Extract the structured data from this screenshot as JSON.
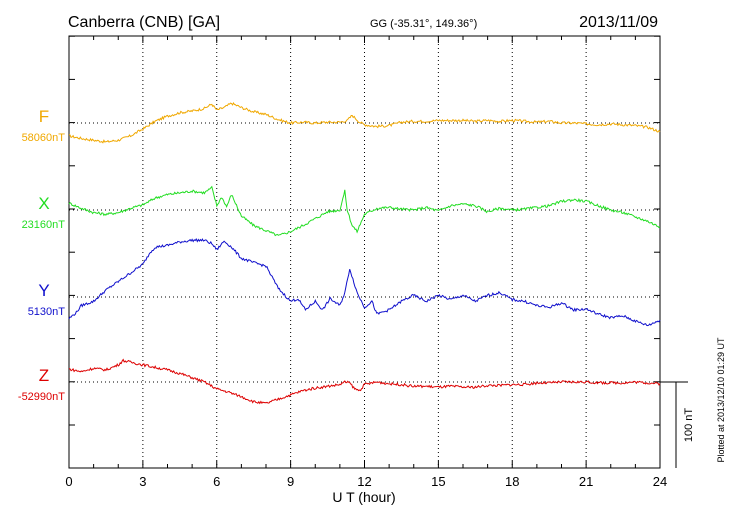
{
  "header": {
    "station": "Canberra (CNB)  [GA]",
    "coords": "GG (-35.31°, 149.36°)",
    "date": "2013/11/09"
  },
  "footer": {
    "plotted": "Plotted at 2013/12/10 01:29 UT",
    "scale_label": "100 nT"
  },
  "chart_data": {
    "type": "line",
    "xlabel": "U T (hour)",
    "xlim": [
      0,
      24
    ],
    "xticks": [
      "0",
      "3",
      "6",
      "9",
      "12",
      "15",
      "18",
      "21",
      "24"
    ],
    "scale_nT": 100,
    "series": [
      {
        "name": "F",
        "base_label": "58060nT",
        "base_nT": 58060,
        "color": "#f0a800",
        "x": [
          0,
          0.5,
          1,
          1.5,
          2,
          2.5,
          3,
          3.5,
          4,
          4.5,
          5,
          5.5,
          5.8,
          6,
          6.3,
          6.6,
          7,
          7.5,
          8,
          8.5,
          9,
          9.5,
          10,
          10.5,
          11,
          11.3,
          11.5,
          11.8,
          12,
          12.5,
          13,
          13.5,
          14,
          14.5,
          15,
          15.5,
          16,
          16.5,
          17,
          17.5,
          18,
          18.5,
          19,
          19.5,
          20,
          20.5,
          21,
          21.5,
          22,
          22.5,
          23,
          23.5,
          24
        ],
        "y": [
          -15,
          -18,
          -20,
          -22,
          -20,
          -15,
          -7,
          2,
          8,
          12,
          14,
          17,
          22,
          15,
          18,
          23,
          18,
          13,
          10,
          4,
          0,
          1,
          0,
          1,
          1,
          3,
          9,
          1,
          -2,
          -4,
          -3,
          1,
          2,
          2,
          3,
          3,
          3,
          2,
          3,
          2,
          3,
          2,
          1,
          2,
          0,
          0,
          -1,
          -2,
          -1,
          -2,
          -3,
          -5,
          -10
        ]
      },
      {
        "name": "X",
        "base_label": "23160nT",
        "base_nT": 23160,
        "color": "#22dd22",
        "x": [
          0,
          0.5,
          1,
          1.5,
          2,
          2.5,
          3,
          3.5,
          4,
          4.5,
          5,
          5.5,
          5.8,
          6,
          6.2,
          6.4,
          6.6,
          7,
          7.5,
          8,
          8.5,
          9,
          9.5,
          10,
          10.5,
          11,
          11.2,
          11.3,
          11.5,
          11.7,
          12,
          12.5,
          13,
          13.5,
          14,
          14.5,
          15,
          15.5,
          16,
          16.5,
          17,
          17.5,
          18,
          18.5,
          19,
          19.5,
          20,
          20.5,
          21,
          21.5,
          22,
          22.5,
          23,
          23.5,
          24
        ],
        "y": [
          8,
          2,
          -3,
          -5,
          -3,
          2,
          6,
          14,
          18,
          20,
          22,
          20,
          26,
          5,
          15,
          4,
          18,
          -7,
          -18,
          -24,
          -30,
          -25,
          -18,
          -10,
          -2,
          0,
          22,
          0,
          -18,
          -25,
          -5,
          2,
          3,
          1,
          0,
          3,
          -1,
          5,
          7,
          5,
          -2,
          2,
          0,
          1,
          3,
          5,
          10,
          12,
          10,
          5,
          0,
          -3,
          -8,
          -13,
          -20
        ]
      },
      {
        "name": "Y",
        "base_label": "5130nT",
        "base_nT": 5130,
        "color": "#1010cc",
        "x": [
          0,
          0.3,
          0.5,
          1,
          1.5,
          2,
          2.5,
          3,
          3.3,
          3.5,
          4,
          4.5,
          5,
          5.5,
          5.8,
          6,
          6.3,
          6.6,
          7,
          7.5,
          8,
          8.5,
          9,
          9.3,
          9.6,
          10,
          10.3,
          10.6,
          11,
          11.2,
          11.4,
          11.7,
          12,
          12.3,
          12.5,
          13,
          13.5,
          14,
          14.5,
          15,
          15.5,
          16,
          16.5,
          17,
          17.5,
          18,
          18.5,
          19,
          19.5,
          20,
          20.5,
          21,
          21.5,
          22,
          22.5,
          23,
          23.5,
          24
        ],
        "y": [
          -25,
          -18,
          -10,
          -5,
          8,
          18,
          28,
          38,
          52,
          58,
          60,
          64,
          66,
          66,
          62,
          55,
          65,
          58,
          45,
          40,
          36,
          10,
          -5,
          -2,
          -15,
          -5,
          -15,
          -2,
          -10,
          5,
          33,
          5,
          -12,
          -5,
          -20,
          -15,
          -5,
          2,
          -5,
          2,
          -3,
          2,
          -5,
          2,
          5,
          -3,
          -5,
          -10,
          -12,
          -7,
          -15,
          -14,
          -20,
          -24,
          -22,
          -28,
          -33,
          -27
        ]
      },
      {
        "name": "Z",
        "base_label": "-52990nT",
        "base_nT": -52990,
        "color": "#dd0000",
        "x": [
          0,
          0.5,
          1,
          1.5,
          2,
          2.2,
          2.5,
          3,
          3.5,
          4,
          4.5,
          5,
          5.5,
          6,
          6.5,
          7,
          7.5,
          8,
          8.5,
          9,
          9.5,
          10,
          10.5,
          11,
          11.2,
          11.4,
          11.6,
          11.8,
          12,
          12.5,
          13,
          13.5,
          14,
          14.5,
          15,
          15.5,
          16,
          16.5,
          17,
          17.5,
          18,
          18.5,
          19,
          19.5,
          20,
          20.5,
          21,
          21.5,
          22,
          22.5,
          23,
          23.5,
          24
        ],
        "y": [
          15,
          12,
          16,
          14,
          20,
          25,
          23,
          20,
          17,
          14,
          10,
          5,
          0,
          -8,
          -12,
          -17,
          -23,
          -25,
          -20,
          -15,
          -10,
          -7,
          -5,
          -3,
          0,
          -1,
          -8,
          -10,
          -3,
          0,
          -2,
          -3,
          -5,
          -5,
          -6,
          -5,
          -6,
          -6,
          -4,
          -4,
          -3,
          -3,
          -1,
          -1,
          0,
          0,
          0,
          -1,
          -1,
          -1,
          0,
          -1,
          -2
        ]
      }
    ]
  }
}
